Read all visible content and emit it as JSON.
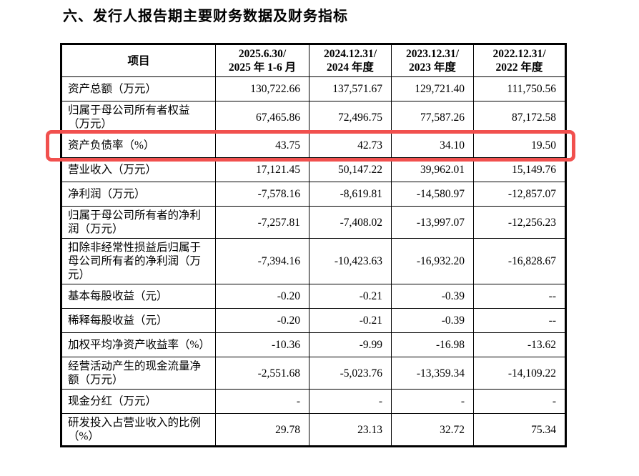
{
  "document": {
    "section_title": "六、发行人报告期主要财务数据及财务指标"
  },
  "table": {
    "headers": [
      {
        "line1": "项目",
        "line2": ""
      },
      {
        "line1": "2025.6.30/",
        "line2": "2025 年 1-6 月"
      },
      {
        "line1": "2024.12.31/",
        "line2": "2024 年度"
      },
      {
        "line1": "2023.12.31/",
        "line2": "2023 年度"
      },
      {
        "line1": "2022.12.31/",
        "line2": "2022 年度"
      }
    ],
    "rows": [
      {
        "label": "资产总额（万元）",
        "values": [
          "130,722.66",
          "137,571.67",
          "129,721.40",
          "111,750.56"
        ],
        "highlight": false
      },
      {
        "label": "归属于母公司所有者权益（万元）",
        "values": [
          "67,465.86",
          "72,496.75",
          "77,587.26",
          "87,172.58"
        ],
        "highlight": false
      },
      {
        "label": "资产负债率（%）",
        "values": [
          "43.75",
          "42.73",
          "34.10",
          "19.50"
        ],
        "highlight": true
      },
      {
        "label": "营业收入（万元）",
        "values": [
          "17,121.45",
          "50,147.22",
          "39,962.01",
          "15,149.76"
        ],
        "highlight": false
      },
      {
        "label": "净利润（万元）",
        "values": [
          "-7,578.16",
          "-8,619.81",
          "-14,580.97",
          "-12,857.07"
        ],
        "highlight": false
      },
      {
        "label": "归属于母公司所有者的净利润（万元）",
        "values": [
          "-7,257.81",
          "-7,408.02",
          "-13,997.07",
          "-12,256.23"
        ],
        "highlight": false
      },
      {
        "label": "扣除非经常性损益后归属于母公司所有者的净利润（万元）",
        "values": [
          "-7,394.16",
          "-10,423.63",
          "-16,932.20",
          "-16,828.67"
        ],
        "highlight": false
      },
      {
        "label": "基本每股收益（元）",
        "values": [
          "-0.20",
          "-0.21",
          "-0.39",
          "--"
        ],
        "highlight": false
      },
      {
        "label": "稀释每股收益（元）",
        "values": [
          "-0.20",
          "-0.21",
          "-0.39",
          "--"
        ],
        "highlight": false
      },
      {
        "label": "加权平均净资产收益率（%）",
        "values": [
          "-10.36",
          "-9.99",
          "-16.98",
          "-13.62"
        ],
        "highlight": false
      },
      {
        "label": "经营活动产生的现金流量净额（万元）",
        "values": [
          "-2,551.68",
          "-5,023.76",
          "-13,359.34",
          "-14,109.22"
        ],
        "highlight": false
      },
      {
        "label": "现金分红（万元）",
        "values": [
          "-",
          "-",
          "-",
          "-"
        ],
        "highlight": false
      },
      {
        "label": "研发投入占营业收入的比例（%）",
        "values": [
          "29.78",
          "23.13",
          "32.72",
          "75.34"
        ],
        "highlight": false
      }
    ],
    "highlight_color": "#f1504e",
    "highlighted_row_label": "资产负债率（%）"
  }
}
